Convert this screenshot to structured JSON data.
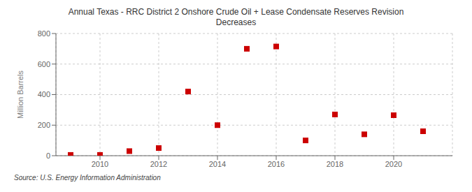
{
  "chart_data": {
    "type": "scatter",
    "title": "Annual Texas - RRC District 2 Onshore Crude Oil + Lease Condensate Reserves Revision\nDecreases",
    "ylabel": "Million Barrels",
    "annotations": [
      "Source: U.S. Energy Information Administration"
    ],
    "x": [
      2009,
      2010,
      2011,
      2012,
      2013,
      2014,
      2015,
      2016,
      2017,
      2018,
      2019,
      2020,
      2021
    ],
    "values": [
      5,
      5,
      30,
      50,
      420,
      200,
      700,
      715,
      100,
      270,
      140,
      265,
      160
    ],
    "color": "#cc0000",
    "marker": "square",
    "grid": true,
    "xlim": [
      2008.5,
      2022.0
    ],
    "xticks": [
      2010,
      2012,
      2014,
      2016,
      2018,
      2020
    ],
    "ylim": [
      0,
      800
    ],
    "yticks": [
      0,
      200,
      400,
      600,
      800
    ]
  }
}
